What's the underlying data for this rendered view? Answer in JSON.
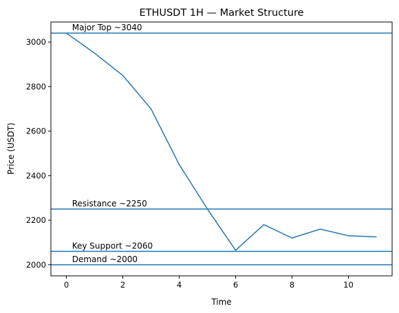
{
  "chart_data": {
    "type": "line",
    "title": "ETHUSDT 1H — Market Structure",
    "xlabel": "Time",
    "ylabel": "Price (USDT)",
    "xlim": [
      -0.55,
      11.55
    ],
    "ylim": [
      1950,
      3090
    ],
    "xticks": [
      0,
      2,
      4,
      6,
      8,
      10
    ],
    "yticks": [
      2000,
      2200,
      2400,
      2600,
      2800,
      3000
    ],
    "grid": false,
    "series": [
      {
        "x": [
          0,
          1,
          2,
          3,
          4,
          5,
          6,
          7,
          8,
          9,
          10,
          11
        ],
        "values": [
          3040,
          2950,
          2850,
          2700,
          2450,
          2250,
          2065,
          2180,
          2120,
          2160,
          2130,
          2125
        ],
        "color": "#1f77b4"
      }
    ],
    "hlines": [
      {
        "y": 3040,
        "label": "Major Top ~3040",
        "color": "#1f77b4"
      },
      {
        "y": 2250,
        "label": "Resistance ~2250",
        "color": "#1f77b4"
      },
      {
        "y": 2060,
        "label": "Key Support ~2060",
        "color": "#1f77b4"
      },
      {
        "y": 2000,
        "label": "Demand ~2000",
        "color": "#1f77b4"
      }
    ],
    "annotation_x": 0.2
  }
}
